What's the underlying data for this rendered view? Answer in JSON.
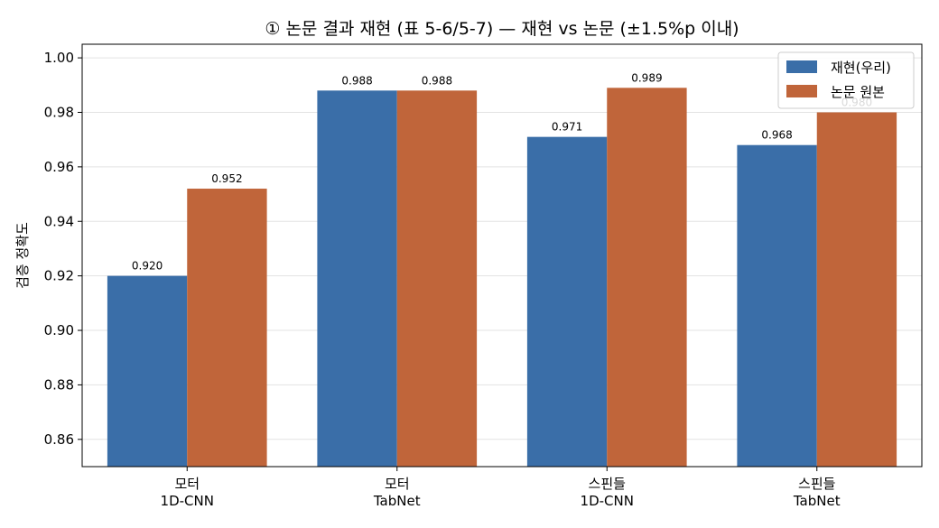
{
  "chart_data": {
    "type": "bar",
    "title": "① 논문 결과 재현 (표 5-6/5-7) — 재현 vs 논문 (±1.5%p 이내)",
    "xlabel": "",
    "ylabel": "검증 정확도",
    "categories": [
      [
        "모터",
        "1D-CNN"
      ],
      [
        "모터",
        "TabNet"
      ],
      [
        "스핀들",
        "1D-CNN"
      ],
      [
        "스핀들",
        "TabNet"
      ]
    ],
    "series": [
      {
        "name": "재현(우리)",
        "color": "#3a6ea8",
        "values": [
          0.92,
          0.988,
          0.971,
          0.968
        ],
        "labels": [
          "0.920",
          "0.988",
          "0.971",
          "0.968"
        ]
      },
      {
        "name": "논문 원본",
        "color": "#c0653a",
        "values": [
          0.952,
          0.988,
          0.989,
          0.98
        ],
        "labels": [
          "0.952",
          "0.988",
          "0.989",
          "0.980"
        ]
      }
    ],
    "ylim": [
      0.85,
      1.005
    ],
    "yticks": [
      "0.86",
      "0.88",
      "0.90",
      "0.92",
      "0.94",
      "0.96",
      "0.98",
      "1.00"
    ],
    "grid": true,
    "legend": "top-right"
  }
}
